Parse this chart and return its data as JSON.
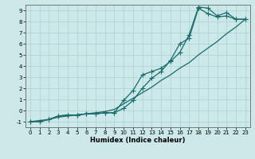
{
  "xlabel": "Humidex (Indice chaleur)",
  "xlim": [
    -0.5,
    23.5
  ],
  "ylim": [
    -1.5,
    9.5
  ],
  "xticks": [
    0,
    1,
    2,
    3,
    4,
    5,
    6,
    7,
    8,
    9,
    10,
    11,
    12,
    13,
    14,
    15,
    16,
    17,
    18,
    19,
    20,
    21,
    22,
    23
  ],
  "yticks": [
    -1,
    0,
    1,
    2,
    3,
    4,
    5,
    6,
    7,
    8,
    9
  ],
  "bg_color": "#cce8e8",
  "line_color": "#1a6b6b",
  "grid_color": "#b0d4d4",
  "line1_x": [
    0,
    1,
    2,
    3,
    4,
    5,
    6,
    7,
    8,
    9,
    10,
    11,
    12,
    13,
    14,
    15,
    16,
    17,
    18,
    19,
    20,
    21,
    22,
    23
  ],
  "line1_y": [
    -1.0,
    -1.0,
    -0.8,
    -0.6,
    -0.5,
    -0.4,
    -0.3,
    -0.2,
    -0.1,
    0.1,
    0.6,
    1.1,
    1.6,
    2.1,
    2.7,
    3.2,
    3.8,
    4.3,
    5.0,
    5.6,
    6.2,
    6.9,
    7.5,
    8.2
  ],
  "line2_x": [
    0,
    1,
    2,
    3,
    4,
    5,
    6,
    7,
    8,
    9,
    10,
    11,
    12,
    13,
    14,
    15,
    16,
    17,
    18,
    19,
    20,
    21,
    22,
    23
  ],
  "line2_y": [
    -1.0,
    -1.0,
    -0.8,
    -0.5,
    -0.4,
    -0.4,
    -0.3,
    -0.3,
    -0.2,
    -0.2,
    0.2,
    0.9,
    2.0,
    2.9,
    3.5,
    4.5,
    6.0,
    6.5,
    9.2,
    8.7,
    8.4,
    8.5,
    8.2,
    8.2
  ],
  "line3_x": [
    0,
    2,
    3,
    4,
    5,
    6,
    7,
    8,
    9,
    10,
    11,
    12,
    13,
    14,
    15,
    16,
    17,
    18,
    19,
    20,
    21,
    22,
    23
  ],
  "line3_y": [
    -1.0,
    -0.8,
    -0.5,
    -0.4,
    -0.4,
    -0.3,
    -0.3,
    -0.2,
    -0.2,
    0.9,
    1.8,
    3.2,
    3.5,
    3.8,
    4.4,
    5.2,
    6.8,
    9.3,
    9.2,
    8.5,
    8.8,
    8.2,
    8.2
  ]
}
